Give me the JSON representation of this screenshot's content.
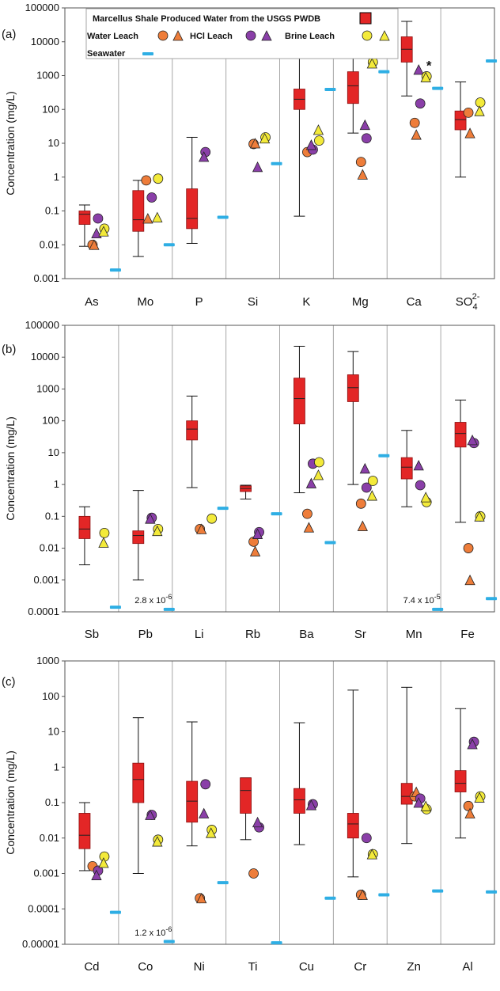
{
  "colors": {
    "pwdb": "#e32626",
    "water": "#ee7d3a",
    "hcl": "#ee7d3a",
    "brine": "#8a3fa8",
    "brine_yellow": "#f3ea3a",
    "seawater": "#2eaee4",
    "grid": "#a6a6a6"
  },
  "legend": {
    "pwdb": "Marcellus Shale Produced Water from the USGS PWDB",
    "water": "Water Leach",
    "hcl": "HCl Leach",
    "brine": "Brine Leach",
    "seawater": "Seawater"
  },
  "chart_data": [
    {
      "type": "box",
      "panel_label": "(a)",
      "ylabel": "Concentration (mg/L)",
      "yscale": "log",
      "ylim": [
        0.001,
        100000
      ],
      "yticks": [
        "0.001",
        "0.01",
        "0.1",
        "1",
        "10",
        "100",
        "1000",
        "10000",
        "100000"
      ],
      "categories": [
        "As",
        "Mo",
        "P",
        "Si",
        "K",
        "Mg",
        "Ca",
        "SO"
      ],
      "category_superscript": {
        "7": "2-"
      },
      "category_subscript": {
        "7": "4"
      },
      "pwdb_box": [
        {
          "whisker_low": 0.009,
          "q1": 0.04,
          "median": 0.08,
          "q3": 0.1,
          "whisker_high": 0.15
        },
        {
          "whisker_low": 0.0045,
          "q1": 0.025,
          "median": 0.055,
          "q3": 0.4,
          "whisker_high": 0.8
        },
        {
          "whisker_low": 0.011,
          "q1": 0.03,
          "median": 0.06,
          "q3": 0.45,
          "whisker_high": 15
        },
        null,
        {
          "whisker_low": 0.07,
          "q1": 100,
          "median": 200,
          "q3": 400,
          "whisker_high": 4000
        },
        {
          "whisker_low": 20,
          "q1": 150,
          "median": 500,
          "q3": 1300,
          "whisker_high": 3500
        },
        {
          "whisker_low": 250,
          "q1": 2500,
          "median": 6000,
          "q3": 14000,
          "whisker_high": 40000
        },
        {
          "whisker_low": 1,
          "q1": 25,
          "median": 50,
          "q3": 90,
          "whisker_high": 650
        }
      ],
      "water_leach": [
        0.01,
        0.8,
        null,
        9.5,
        5.5,
        2.8,
        40,
        80
      ],
      "hcl_leach": [
        0.01,
        0.06,
        null,
        10,
        null,
        1.2,
        18,
        20
      ],
      "brine_leach_circle": [
        0.06,
        0.25,
        5.5,
        null,
        6.5,
        14,
        150,
        null
      ],
      "brine_leach_triangle": [
        0.022,
        null,
        4,
        2,
        9,
        35,
        1500,
        null
      ],
      "brine_leach_yellow_circle": [
        0.03,
        0.9,
        null,
        15,
        12,
        2500,
        950,
        160
      ],
      "brine_leach_yellow_triangle": [
        0.025,
        0.065,
        null,
        14,
        25,
        2300,
        900,
        90
      ],
      "seawater": [
        0.0018,
        0.01,
        0.065,
        2.5,
        390,
        1300,
        420,
        2700
      ],
      "asterisks": [
        "Mg",
        "Ca"
      ]
    },
    {
      "type": "box",
      "panel_label": "(b)",
      "ylabel": "Concentration (mg/L)",
      "yscale": "log",
      "ylim": [
        0.0001,
        100000
      ],
      "yticks": [
        "0.0001",
        "0.001",
        "0.01",
        "0.1",
        "1",
        "10",
        "100",
        "1000",
        "10000",
        "100000"
      ],
      "categories": [
        "Sb",
        "Pb",
        "Li",
        "Rb",
        "Ba",
        "Sr",
        "Mn",
        "Fe"
      ],
      "pwdb_box": [
        {
          "whisker_low": 0.003,
          "q1": 0.02,
          "median": 0.04,
          "q3": 0.1,
          "whisker_high": 0.2
        },
        {
          "whisker_low": 0.001,
          "q1": 0.014,
          "median": 0.025,
          "q3": 0.035,
          "whisker_high": 0.65
        },
        {
          "whisker_low": 0.8,
          "q1": 25,
          "median": 55,
          "q3": 100,
          "whisker_high": 600
        },
        {
          "whisker_low": 0.35,
          "q1": 0.6,
          "median": 0.75,
          "q3": 0.9,
          "whisker_high": 0.95
        },
        {
          "whisker_low": 0.55,
          "q1": 80,
          "median": 500,
          "q3": 2200,
          "whisker_high": 22000
        },
        {
          "whisker_low": 1,
          "q1": 400,
          "median": 1100,
          "q3": 2800,
          "whisker_high": 15000
        },
        {
          "whisker_low": 0.2,
          "q1": 1.5,
          "median": 3.5,
          "q3": 7,
          "whisker_high": 50
        },
        {
          "whisker_low": 0.065,
          "q1": 15,
          "median": 40,
          "q3": 90,
          "whisker_high": 450
        }
      ],
      "water_leach": [
        null,
        null,
        0.04,
        0.016,
        0.12,
        0.25,
        null,
        0.01
      ],
      "hcl_leach": [
        null,
        null,
        0.04,
        0.008,
        0.045,
        0.05,
        null,
        0.001
      ],
      "brine_leach_circle": [
        null,
        0.09,
        null,
        0.032,
        4.5,
        0.8,
        0.95,
        20
      ],
      "brine_leach_triangle": [
        null,
        0.085,
        null,
        0.028,
        1.1,
        3.2,
        4,
        25
      ],
      "brine_leach_yellow_circle": [
        0.03,
        0.04,
        0.085,
        null,
        5,
        1.3,
        0.28,
        0.1
      ],
      "brine_leach_yellow_triangle": [
        0.015,
        0.035,
        null,
        null,
        2,
        0.45,
        0.4,
        0.1
      ],
      "seawater": [
        0.00014,
        0.00012,
        0.18,
        0.12,
        0.015,
        8,
        0.00012,
        0.00026
      ],
      "annotations": [
        {
          "category": "Pb",
          "text": "2.8 x 10",
          "sup": "-6"
        },
        {
          "category": "Mn",
          "text": "7.4 x 10",
          "sup": "-5"
        }
      ]
    },
    {
      "type": "box",
      "panel_label": "(c)",
      "ylabel": "Concentration (mg/L)",
      "yscale": "log",
      "ylim": [
        1e-05,
        1000
      ],
      "yticks": [
        "0.00001",
        "0.0001",
        "0.001",
        "0.01",
        "0.1",
        "1",
        "10",
        "100",
        "1000"
      ],
      "categories": [
        "Cd",
        "Co",
        "Ni",
        "Ti",
        "Cu",
        "Cr",
        "Zn",
        "Al"
      ],
      "pwdb_box": [
        {
          "whisker_low": 0.0012,
          "q1": 0.005,
          "median": 0.012,
          "q3": 0.05,
          "whisker_high": 0.1
        },
        {
          "whisker_low": 0.001,
          "q1": 0.1,
          "median": 0.45,
          "q3": 1.3,
          "whisker_high": 25
        },
        {
          "whisker_low": 0.006,
          "q1": 0.028,
          "median": 0.11,
          "q3": 0.4,
          "whisker_high": 19
        },
        {
          "whisker_low": 0.009,
          "q1": 0.05,
          "median": 0.22,
          "q3": 0.5,
          "whisker_high": 0.5
        },
        {
          "whisker_low": 0.0065,
          "q1": 0.05,
          "median": 0.12,
          "q3": 0.25,
          "whisker_high": 18
        },
        {
          "whisker_low": 0.0008,
          "q1": 0.01,
          "median": 0.025,
          "q3": 0.05,
          "whisker_high": 150
        },
        {
          "whisker_low": 0.007,
          "q1": 0.09,
          "median": 0.15,
          "q3": 0.35,
          "whisker_high": 180
        },
        {
          "whisker_low": 0.01,
          "q1": 0.2,
          "median": 0.35,
          "q3": 0.8,
          "whisker_high": 45
        }
      ],
      "water_leach": [
        0.0016,
        null,
        0.0002,
        0.001,
        null,
        0.00025,
        0.15,
        0.08
      ],
      "hcl_leach": [
        null,
        null,
        0.0002,
        null,
        null,
        0.00025,
        0.2,
        0.05
      ],
      "brine_leach_circle": [
        0.0012,
        0.045,
        0.33,
        0.02,
        0.09,
        0.01,
        0.13,
        5.2
      ],
      "brine_leach_triangle": [
        0.0009,
        0.045,
        0.05,
        0.028,
        0.085,
        null,
        0.1,
        4.5
      ],
      "brine_leach_yellow_circle": [
        0.003,
        0.009,
        0.017,
        null,
        null,
        0.0035,
        0.065,
        0.15
      ],
      "brine_leach_yellow_triangle": [
        0.002,
        0.008,
        0.014,
        null,
        null,
        0.0035,
        0.08,
        0.14
      ],
      "seawater": [
        8e-05,
        1.2e-05,
        0.00055,
        1.1e-05,
        0.0002,
        0.00025,
        0.00032,
        0.0003
      ],
      "annotations": [
        {
          "category": "Co",
          "text": "1.2 x 10",
          "sup": "-6"
        }
      ]
    }
  ]
}
